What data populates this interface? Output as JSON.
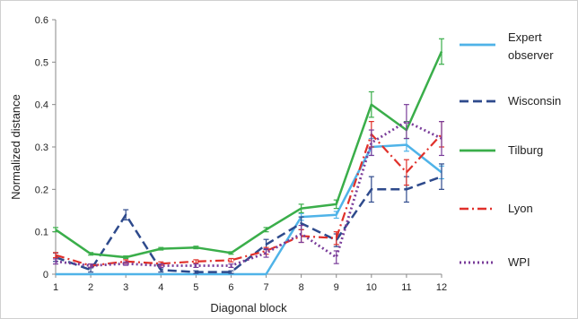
{
  "chart_data": {
    "type": "line",
    "xlabel": "Diagonal block",
    "ylabel": "Normalized distance",
    "x": [
      1,
      2,
      3,
      4,
      5,
      6,
      7,
      8,
      9,
      10,
      11,
      12
    ],
    "xlim": [
      1,
      12
    ],
    "ylim": [
      0,
      0.6
    ],
    "yticks": [
      "0",
      "0.1",
      "0.2",
      "0.3",
      "0.4",
      "0.5",
      "0.6"
    ],
    "xticks": [
      "1",
      "2",
      "3",
      "4",
      "5",
      "6",
      "7",
      "8",
      "9",
      "10",
      "11",
      "12"
    ],
    "grid": false,
    "legend_position": "right",
    "series": [
      {
        "name": "Expert observer",
        "legend_lines": [
          "Expert",
          "observer"
        ],
        "color": "#4fb3e8",
        "style": "solid",
        "values": [
          0.0,
          0.0,
          0.0,
          0.0,
          0.0,
          0.0,
          0.0,
          0.135,
          0.14,
          0.3,
          0.305,
          0.24
        ],
        "errors": [
          0,
          0,
          0,
          0,
          0,
          0,
          0,
          0.008,
          0.008,
          0.02,
          0.015,
          0.015
        ]
      },
      {
        "name": "Wisconsin",
        "legend_lines": [
          "Wisconsin"
        ],
        "color": "#2e4a8c",
        "style": "dashed",
        "values": [
          0.04,
          0.01,
          0.14,
          0.01,
          0.005,
          0.005,
          0.07,
          0.12,
          0.08,
          0.2,
          0.2,
          0.23
        ],
        "errors": [
          0.01,
          0.005,
          0.012,
          0.005,
          0.003,
          0.003,
          0.012,
          0.015,
          0.015,
          0.03,
          0.03,
          0.03
        ]
      },
      {
        "name": "Tilburg",
        "legend_lines": [
          "Tilburg"
        ],
        "color": "#3aae4a",
        "style": "solid",
        "values": [
          0.105,
          0.048,
          0.04,
          0.06,
          0.063,
          0.05,
          0.105,
          0.155,
          0.165,
          0.4,
          0.34,
          0.525
        ],
        "errors": [
          0.005,
          0.003,
          0.003,
          0.003,
          0.003,
          0.003,
          0.005,
          0.01,
          0.01,
          0.03,
          0.02,
          0.03
        ]
      },
      {
        "name": "Lyon",
        "legend_lines": [
          "Lyon"
        ],
        "color": "#e0302a",
        "style": "dashdot",
        "values": [
          0.045,
          0.02,
          0.03,
          0.025,
          0.03,
          0.033,
          0.055,
          0.09,
          0.085,
          0.33,
          0.24,
          0.33
        ],
        "errors": [
          0.006,
          0.004,
          0.004,
          0.004,
          0.004,
          0.004,
          0.008,
          0.015,
          0.015,
          0.03,
          0.03,
          0.03
        ]
      },
      {
        "name": "WPI",
        "legend_lines": [
          "WPI"
        ],
        "color": "#7a3d9a",
        "style": "dotted",
        "values": [
          0.03,
          0.02,
          0.025,
          0.02,
          0.02,
          0.02,
          0.05,
          0.095,
          0.04,
          0.31,
          0.36,
          0.32
        ],
        "errors": [
          0.006,
          0.004,
          0.004,
          0.004,
          0.004,
          0.004,
          0.01,
          0.02,
          0.015,
          0.03,
          0.04,
          0.04
        ]
      }
    ]
  }
}
